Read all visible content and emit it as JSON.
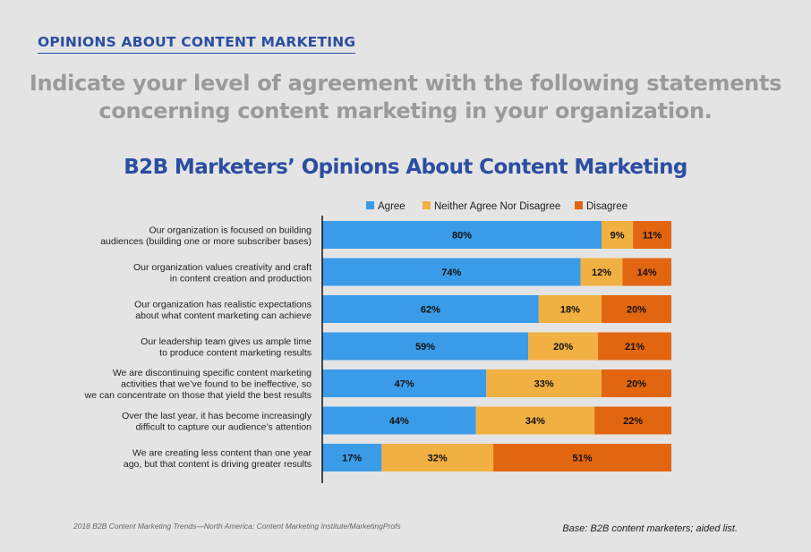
{
  "header": {
    "section_title": "OPINIONS ABOUT CONTENT MARKETING",
    "subtitle_line1": "Indicate your level of agreement with the following statements",
    "subtitle_line2": "concerning content marketing in your organization."
  },
  "footer": {
    "source": "2018 B2B Content Marketing Trends—North America: Content Marketing Institute/MarketingProfs",
    "base": "Base: B2B content marketers; aided list."
  },
  "colors": {
    "agree": "#3a9ce8",
    "neither": "#f1b042",
    "disagree": "#e2650f",
    "title": "#2b4ea1"
  },
  "chart_data": {
    "type": "bar",
    "orientation": "horizontal",
    "stacked": true,
    "title": "B2B Marketers’ Opinions About Content Marketing",
    "legend_position": "top",
    "categories": [
      [
        "Our organization is focused on building",
        "audiences (building one or more subscriber bases)"
      ],
      [
        "Our organization values creativity and craft",
        "in content creation and production"
      ],
      [
        "Our organization has realistic expectations",
        "about what content marketing can achieve"
      ],
      [
        "Our leadership team gives us ample time",
        "to produce content marketing results"
      ],
      [
        "We are discontinuing specific content marketing",
        "activities that we’ve found to be ineffective, so",
        "we can concentrate on those that yield the best results"
      ],
      [
        "Over the last year, it has become increasingly",
        "difficult to capture our audience’s attention"
      ],
      [
        "We are creating less content than one year",
        "ago, but that content is driving greater results"
      ]
    ],
    "series": [
      {
        "name": "Agree",
        "color": "#3a9ce8",
        "values": [
          80,
          74,
          62,
          59,
          47,
          44,
          17
        ]
      },
      {
        "name": "Neither Agree Nor Disagree",
        "color": "#f1b042",
        "values": [
          9,
          12,
          18,
          20,
          33,
          34,
          32
        ]
      },
      {
        "name": "Disagree",
        "color": "#e2650f",
        "values": [
          11,
          14,
          20,
          21,
          20,
          22,
          51
        ]
      }
    ],
    "value_suffix": "%"
  }
}
